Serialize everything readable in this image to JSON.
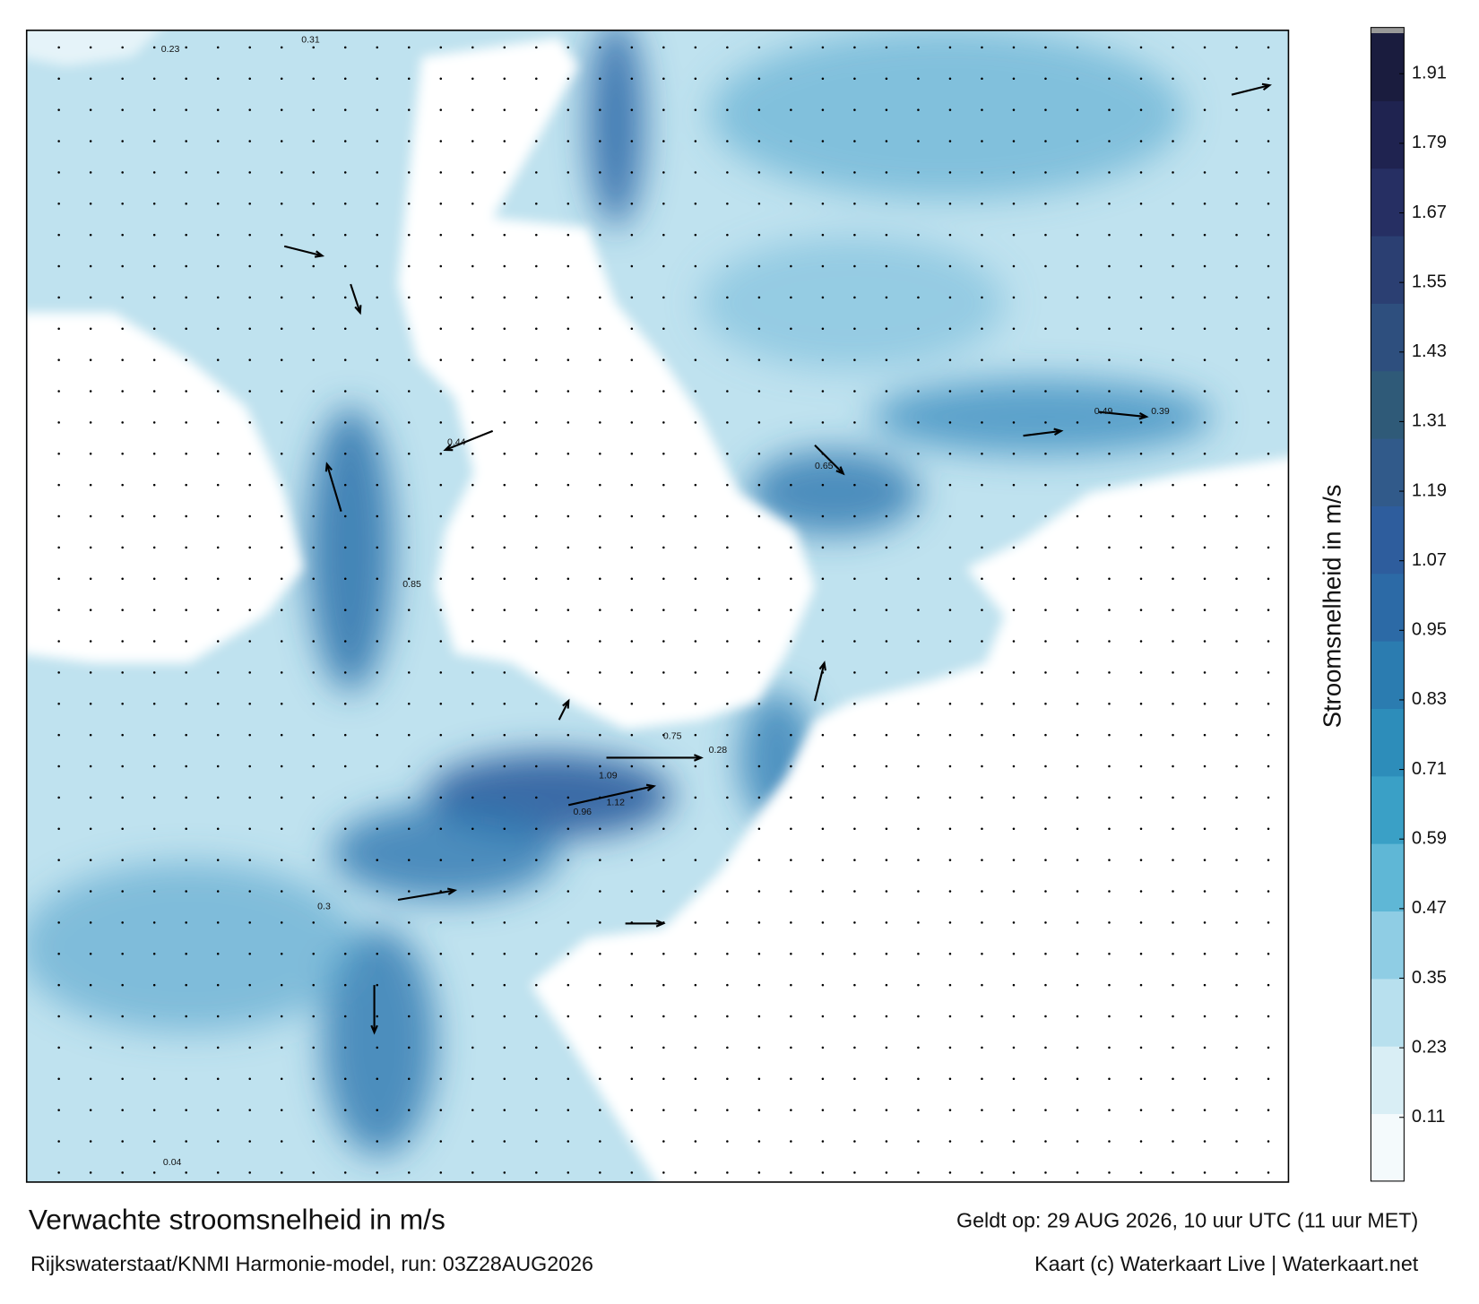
{
  "header": {
    "title": "Verwachte stroomsnelheid in m/s",
    "subtitle": "Rijkswaterstaat/KNMI Harmonie-model, run: 03Z28AUG2026",
    "valid": "Geldt op: 29 AUG 2026, 10 uur UTC (11 uur MET)",
    "credit": "Kaart (c) Waterkaart Live | Waterkaart.net"
  },
  "colorbar": {
    "label": "Stroomsnelheid in m/s",
    "lim": [
      0,
      1.98
    ],
    "ticks": [
      0.11,
      0.23,
      0.35,
      0.47,
      0.59,
      0.71,
      0.83,
      0.95,
      1.07,
      1.19,
      1.31,
      1.43,
      1.55,
      1.67,
      1.79,
      1.91
    ],
    "colors": [
      "#f4fafc",
      "#d9eef5",
      "#b8e0ee",
      "#8fcde4",
      "#5fb7d6",
      "#3aa0c6",
      "#2d8dba",
      "#2b7cb0",
      "#2c6aa6",
      "#2e5d9d",
      "#315a8a",
      "#2f5a78",
      "#2e4f7e",
      "#2b3f72",
      "#262f63",
      "#1f2350",
      "#1a1c3e"
    ]
  },
  "map": {
    "labels": [
      "0.23",
      "0.31",
      "0.85",
      "0.75",
      "1.12",
      "0.96",
      "1.09",
      "0.49",
      "0.39",
      "0.3",
      "0.04",
      "0.28",
      "0.65",
      "0.44"
    ]
  }
}
